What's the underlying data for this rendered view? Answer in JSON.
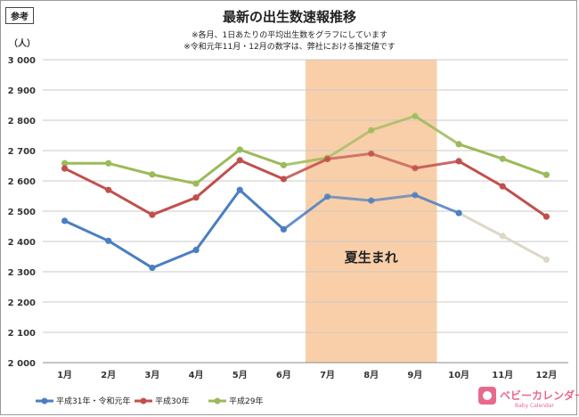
{
  "badge": "参考",
  "brand": {
    "name": "ベビーカレンダー",
    "sub": "Baby Calendar",
    "color": "#e76a8c"
  },
  "chart_data": {
    "type": "line",
    "title": "最新の出生数速報推移",
    "notes": [
      "※各月、1日あたりの平均出生数をグラフにしています",
      "※令和元年11月・12月の数字は、弊社における推定値です"
    ],
    "ylabel": "（人）",
    "ylim": [
      2000,
      3000
    ],
    "y_ticks": [
      "3 000",
      "2 900",
      "2 800",
      "2 700",
      "2 600",
      "2 500",
      "2 400",
      "2 300",
      "2 200",
      "2 100",
      "2 000"
    ],
    "y_tick_values": [
      3000,
      2900,
      2800,
      2700,
      2600,
      2500,
      2400,
      2300,
      2200,
      2100,
      2000
    ],
    "categories": [
      "1月",
      "2月",
      "3月",
      "4月",
      "5月",
      "6月",
      "7月",
      "8月",
      "9月",
      "10月",
      "11月",
      "12月"
    ],
    "grid": true,
    "highlight": {
      "from": "7月",
      "to": "9月",
      "label": "夏生まれ",
      "color": "#f9cfa9"
    },
    "legend_position": "bottom-left",
    "series": [
      {
        "name": "平成31年・令和元年",
        "color": "#4a7fc1",
        "values": [
          2468,
          2402,
          2313,
          2372,
          2570,
          2440,
          2548,
          2535,
          2553,
          2494,
          2418,
          2340
        ],
        "estimated_from": "11月",
        "estimated_color": "#ddd8c6"
      },
      {
        "name": "平成30年",
        "color": "#c0504d",
        "values": [
          2641,
          2570,
          2488,
          2545,
          2668,
          2606,
          2672,
          2690,
          2642,
          2665,
          2582,
          2482
        ]
      },
      {
        "name": "平成29年",
        "color": "#9bbb59",
        "values": [
          2658,
          2658,
          2621,
          2591,
          2703,
          2652,
          2676,
          2767,
          2814,
          2721,
          2673,
          2620
        ]
      }
    ]
  }
}
